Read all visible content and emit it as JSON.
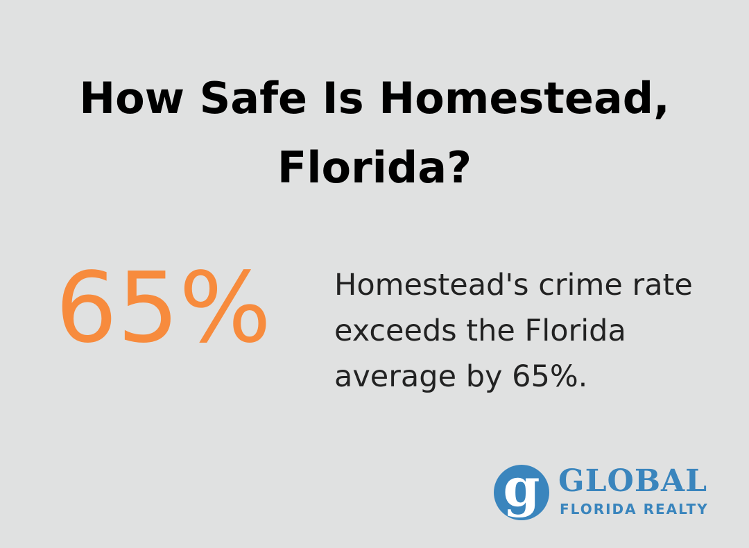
{
  "header": {
    "title": "How Safe Is Homestead, Florida?"
  },
  "stat": {
    "value": "65%",
    "description": "Homestead's crime rate exceeds the Florida average by 65%."
  },
  "logo": {
    "letter": "g",
    "name": "GLOBAL",
    "tagline": "FLORIDA REALTY"
  }
}
